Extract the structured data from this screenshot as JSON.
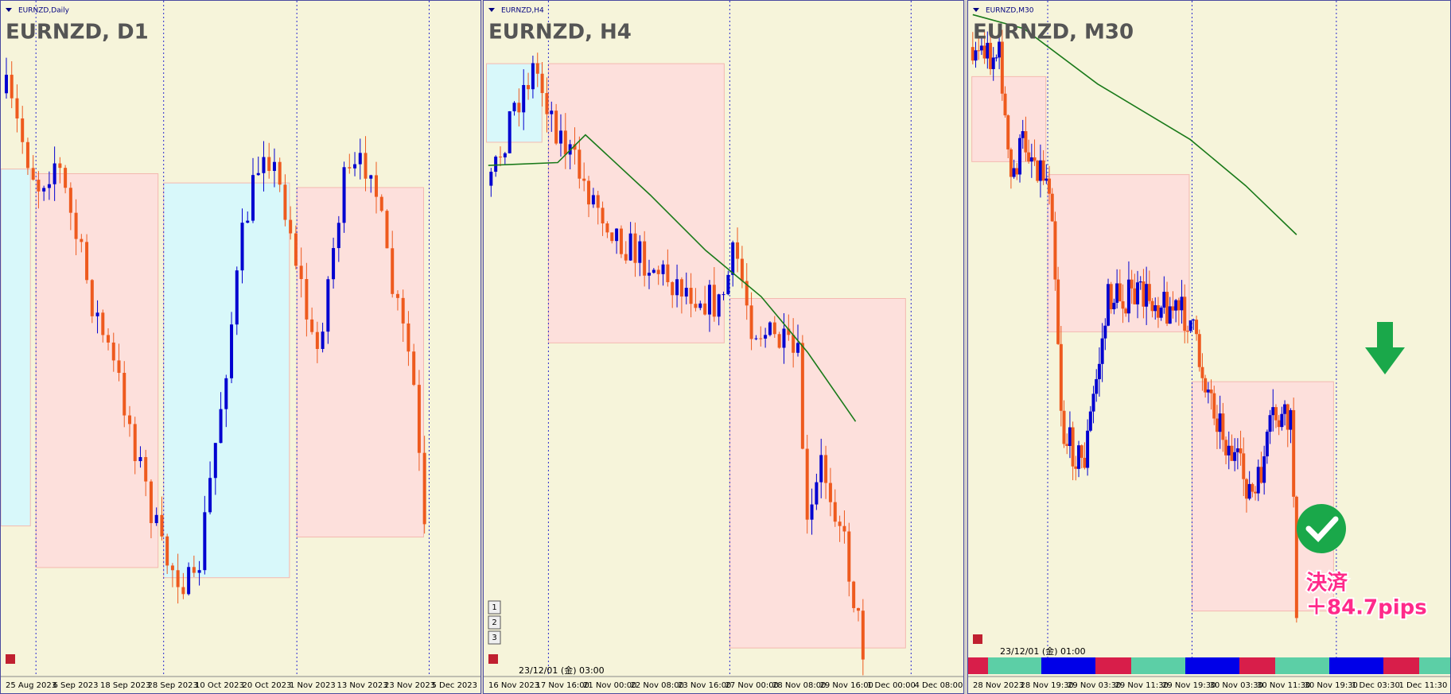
{
  "panels": [
    {
      "window_title": "EURNZD,Daily",
      "symbol_label": "EURNZD, D1",
      "dates": [
        "25 Aug 2023",
        "6 Sep 2023",
        "18 Sep 2023",
        "28 Sep 2023",
        "10 Oct 2023",
        "20 Oct 2023",
        "1 Nov 2023",
        "13 Nov 2023",
        "23 Nov 2023",
        "5 Dec 2023"
      ]
    },
    {
      "window_title": "EURNZD,H4",
      "symbol_label": "EURNZD, H4",
      "status_time": "23/12/01 (金) 03:00",
      "buttons": [
        "1",
        "2",
        "3"
      ],
      "dates": [
        "16 Nov 2023",
        "17 Nov 16:00",
        "21 Nov 00:00",
        "22 Nov 08:00",
        "23 Nov 16:00",
        "27 Nov 00:00",
        "28 Nov 08:00",
        "29 Nov 16:00",
        "1 Dec 00:00",
        "4 Dec 08:00"
      ]
    },
    {
      "window_title": "EURNZD,M30",
      "symbol_label": "EURNZD, M30",
      "status_time": "23/12/01 (金) 01:00",
      "dates": [
        "28 Nov 2023",
        "28 Nov 19:30",
        "29 Nov 03:30",
        "29 Nov 11:30",
        "29 Nov 19:30",
        "30 Nov 03:30",
        "30 Nov 11:30",
        "30 Nov 19:30",
        "1 Dec 03:30",
        "1 Dec 11:30"
      ]
    }
  ],
  "annotation": {
    "label": "決済",
    "result": "＋84.7pips"
  }
}
